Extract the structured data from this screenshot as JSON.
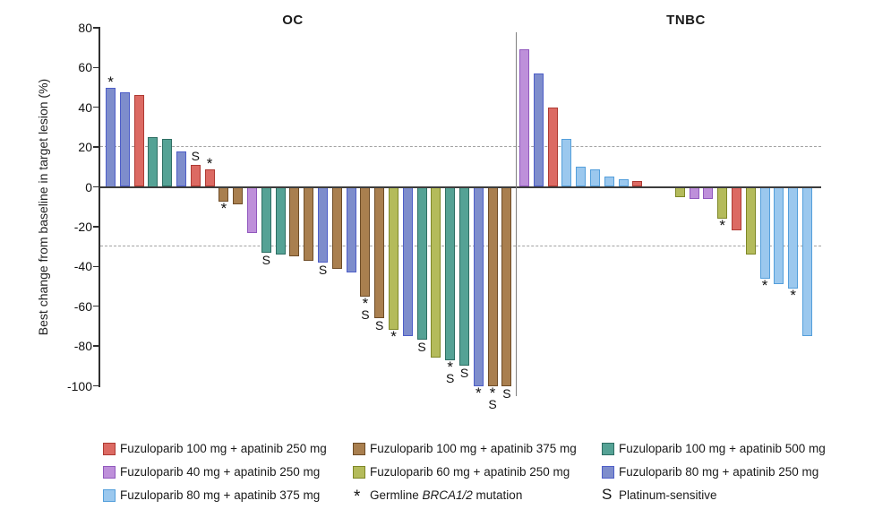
{
  "chart_data": {
    "type": "bar",
    "ylabel": "Best change from baseline in target lesion (%)",
    "panel_titles": {
      "left": "OC",
      "right": "TNBC"
    },
    "ylim": [
      -100,
      80
    ],
    "yticks": [
      80,
      60,
      40,
      20,
      0,
      -20,
      -40,
      -60,
      -80,
      -100
    ],
    "reference_lines": [
      20,
      -30
    ],
    "grid": "off",
    "legend_position": "bottom",
    "annotation_symbols": {
      "germline_mutation": "*",
      "platinum_sensitive": "S"
    },
    "groups": [
      {
        "name": "OC",
        "bars": [
          {
            "v": 50,
            "c": "blue",
            "m": "*"
          },
          {
            "v": 47.5,
            "c": "blue"
          },
          {
            "v": 46,
            "c": "red"
          },
          {
            "v": 25,
            "c": "teal"
          },
          {
            "v": 24,
            "c": "teal"
          },
          {
            "v": 18,
            "c": "blue"
          },
          {
            "v": 11,
            "c": "red",
            "m": "S"
          },
          {
            "v": 9,
            "c": "red",
            "m": "*"
          },
          {
            "v": -7.5,
            "c": "brown",
            "m": "*"
          },
          {
            "v": -9,
            "c": "brown"
          },
          {
            "v": -23,
            "c": "purple"
          },
          {
            "v": -33,
            "c": "teal",
            "m": "S"
          },
          {
            "v": -34,
            "c": "teal"
          },
          {
            "v": -35,
            "c": "brown"
          },
          {
            "v": -37,
            "c": "brown"
          },
          {
            "v": -38,
            "c": "blue",
            "m": "S"
          },
          {
            "v": -41,
            "c": "brown"
          },
          {
            "v": -43,
            "c": "blue"
          },
          {
            "v": -55,
            "c": "brown",
            "m": "*S"
          },
          {
            "v": -66,
            "c": "brown",
            "m": "S"
          },
          {
            "v": -72,
            "c": "yellow",
            "m": "*"
          },
          {
            "v": -75,
            "c": "blue"
          },
          {
            "v": -77,
            "c": "teal",
            "m": "S"
          },
          {
            "v": -86,
            "c": "yellow"
          },
          {
            "v": -87,
            "c": "teal",
            "m": "*S"
          },
          {
            "v": -90,
            "c": "teal",
            "m": "S"
          },
          {
            "v": -100,
            "c": "blue",
            "m": "*"
          },
          {
            "v": -100,
            "c": "brown",
            "m": "*S"
          },
          {
            "v": -100,
            "c": "brown",
            "m": "S"
          }
        ]
      },
      {
        "name": "TNBC",
        "gap": {
          "after_bar": 9,
          "slots": 2
        },
        "bars": [
          {
            "v": 69,
            "c": "purple"
          },
          {
            "v": 57,
            "c": "blue"
          },
          {
            "v": 40,
            "c": "red"
          },
          {
            "v": 24,
            "c": "lightblue"
          },
          {
            "v": 10,
            "c": "lightblue"
          },
          {
            "v": 9,
            "c": "lightblue"
          },
          {
            "v": 5,
            "c": "lightblue"
          },
          {
            "v": 4,
            "c": "lightblue"
          },
          {
            "v": 3,
            "c": "red"
          },
          {
            "v": -5,
            "c": "yellow"
          },
          {
            "v": -6,
            "c": "purple"
          },
          {
            "v": -6,
            "c": "purple"
          },
          {
            "v": -16,
            "c": "yellow",
            "m": "*"
          },
          {
            "v": -22,
            "c": "red"
          },
          {
            "v": -34,
            "c": "yellow"
          },
          {
            "v": -46,
            "c": "lightblue",
            "m": "*"
          },
          {
            "v": -49,
            "c": "lightblue"
          },
          {
            "v": -51,
            "c": "lightblue",
            "m": "*"
          },
          {
            "v": -75,
            "c": "lightblue"
          }
        ]
      }
    ]
  },
  "colors": {
    "red": {
      "fill": "#DC6A63",
      "border": "#AE3A33"
    },
    "purple": {
      "fill": "#BE90DA",
      "border": "#9159BE"
    },
    "lightblue": {
      "fill": "#9BC8EE",
      "border": "#549FDB"
    },
    "brown": {
      "fill": "#A97F4F",
      "border": "#6E4C27"
    },
    "yellow": {
      "fill": "#B4BB5B",
      "border": "#7E8727"
    },
    "teal": {
      "fill": "#55A295",
      "border": "#2E6E63"
    },
    "blue": {
      "fill": "#7E8DCC",
      "border": "#4E5EC8"
    }
  },
  "legend": {
    "items": [
      {
        "row": 0,
        "col": 0,
        "swatch": "red",
        "label": "Fuzuloparib 100 mg + apatinib 250 mg"
      },
      {
        "row": 1,
        "col": 0,
        "swatch": "purple",
        "label": "Fuzuloparib 40 mg + apatinib 250 mg"
      },
      {
        "row": 2,
        "col": 0,
        "swatch": "lightblue",
        "label": "Fuzuloparib 80 mg + apatinib 375 mg"
      },
      {
        "row": 0,
        "col": 1,
        "swatch": "brown",
        "label": "Fuzuloparib 100 mg + apatinib 375 mg"
      },
      {
        "row": 1,
        "col": 1,
        "swatch": "yellow",
        "label": "Fuzuloparib 60 mg + apatinib 250 mg"
      },
      {
        "row": 2,
        "col": 1,
        "symbol": "*",
        "label_parts": [
          "Germline ",
          "BRCA1/2",
          " mutation"
        ]
      },
      {
        "row": 0,
        "col": 2,
        "swatch": "teal",
        "label": "Fuzuloparib 100 mg + apatinib 500 mg"
      },
      {
        "row": 1,
        "col": 2,
        "swatch": "blue",
        "label": "Fuzuloparib 80 mg + apatinib 250 mg"
      },
      {
        "row": 2,
        "col": 2,
        "symbol": "S",
        "label": "Platinum-sensitive"
      }
    ]
  }
}
